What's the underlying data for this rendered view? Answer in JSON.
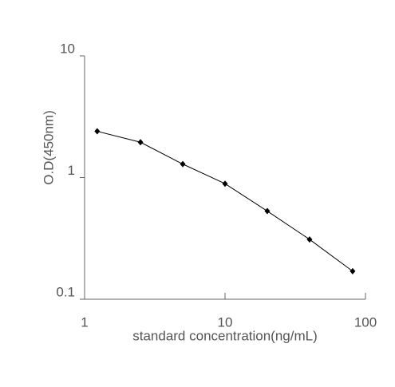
{
  "chart_data": {
    "type": "scatter",
    "x_label": "standard concentration(ng/mL)",
    "y_label": "O.D(450nm)",
    "x": [
      1.23,
      2.5,
      5,
      10,
      20,
      40,
      81
    ],
    "values": [
      2.4,
      1.95,
      1.29,
      0.89,
      0.53,
      0.31,
      0.17
    ],
    "color": "#000000",
    "xlim": [
      1,
      100
    ],
    "xticks": [
      1,
      10,
      100
    ],
    "ylim": [
      0.1,
      10
    ],
    "yticks": [
      0.1,
      1,
      10
    ],
    "xscale": "log",
    "yscale": "log",
    "connect": true,
    "grid": false
  }
}
